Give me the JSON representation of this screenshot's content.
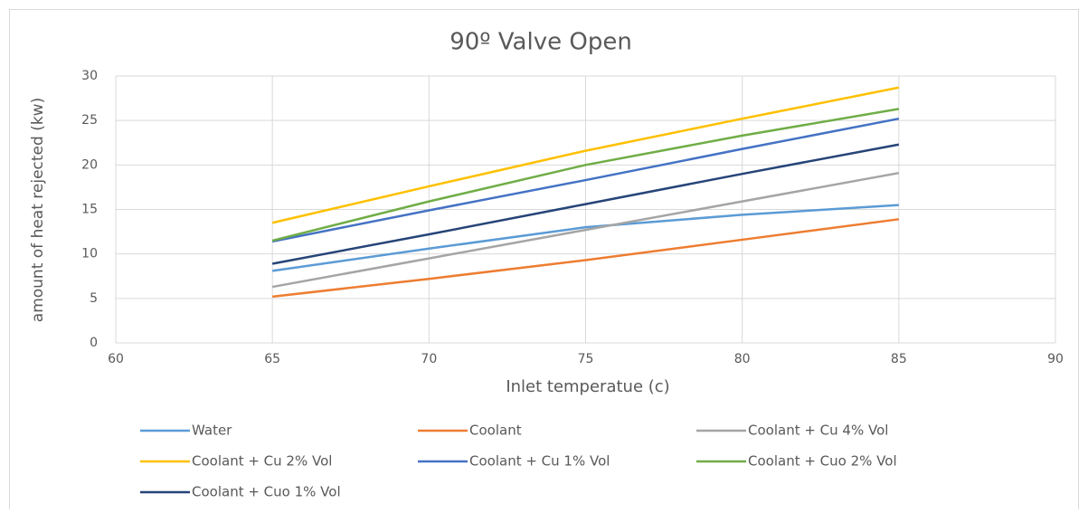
{
  "chart_data": {
    "type": "line",
    "title": "90º Valve Open",
    "x_label": "Inlet temperatue  (c)",
    "y_label": "amount of heat rejected (kw)",
    "x": [
      65,
      70,
      75,
      80,
      85
    ],
    "series": [
      {
        "name": "Water",
        "color": "#5b9bd5",
        "values": [
          8.1,
          10.6,
          13.0,
          14.4,
          15.5
        ]
      },
      {
        "name": "Coolant",
        "color": "#ed7d31",
        "values": [
          5.2,
          7.2,
          9.3,
          11.6,
          13.9
        ]
      },
      {
        "name": "Coolant + Cu 4% Vol",
        "color": "#a5a5a5",
        "values": [
          6.3,
          9.5,
          12.7,
          15.9,
          19.1
        ]
      },
      {
        "name": "Coolant + Cu 2% Vol",
        "color": "#ffc000",
        "values": [
          13.5,
          17.6,
          21.6,
          25.2,
          28.7
        ]
      },
      {
        "name": "Coolant + Cu 1% Vol",
        "color": "#4472c4",
        "values": [
          11.4,
          14.9,
          18.3,
          21.8,
          25.2
        ]
      },
      {
        "name": "Coolant + Cuo 2% Vol",
        "color": "#70ad47",
        "values": [
          11.5,
          15.9,
          20.0,
          23.3,
          26.3
        ]
      },
      {
        "name": "Coolant + Cuo 1% Vol",
        "color": "#264478",
        "values": [
          8.9,
          12.2,
          15.6,
          19.0,
          22.3
        ]
      }
    ],
    "xlim": [
      60,
      90
    ],
    "xticks": [
      60,
      65,
      70,
      75,
      80,
      85,
      90
    ],
    "ylim": [
      0,
      30
    ],
    "yticks": [
      0,
      5,
      10,
      15,
      20,
      25,
      30
    ],
    "grid": true,
    "legend": "bottom"
  }
}
